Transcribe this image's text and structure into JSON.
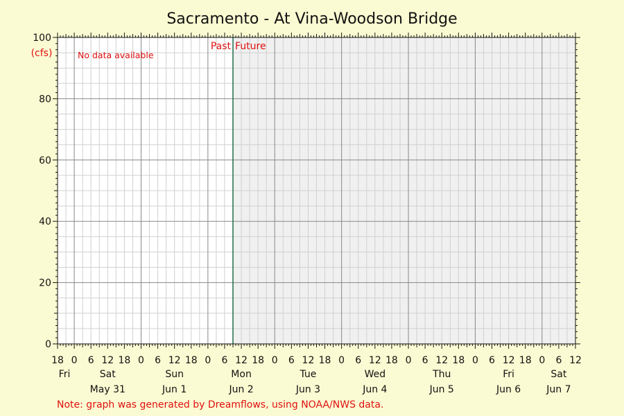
{
  "chart_data": {
    "type": "line",
    "title": "Sacramento - At Vina-Woodson Bridge",
    "ylabel": "(cfs)",
    "ylim": [
      0,
      100
    ],
    "y_ticks": [
      0,
      20,
      40,
      60,
      80,
      100
    ],
    "xlim": [
      "2025-05-30T18:00",
      "2025-06-07T12:00"
    ],
    "x_hour_labels": [
      "18",
      "0",
      "6",
      "12",
      "18",
      "0",
      "6",
      "12",
      "18",
      "0",
      "6",
      "12",
      "18",
      "0",
      "6",
      "12",
      "18",
      "0",
      "6",
      "12",
      "18",
      "0",
      "6",
      "12",
      "18",
      "0",
      "6",
      "12",
      "18",
      "0",
      "6",
      "12"
    ],
    "day_names": [
      {
        "text": "Fri",
        "t": "2025-05-30T18:00"
      },
      {
        "text": "Sat",
        "t": "2025-05-31T12:00"
      },
      {
        "text": "Sun",
        "t": "2025-06-01T12:00"
      },
      {
        "text": "Mon",
        "t": "2025-06-02T12:00"
      },
      {
        "text": "Tue",
        "t": "2025-06-03T12:00"
      },
      {
        "text": "Wed",
        "t": "2025-06-04T12:00"
      },
      {
        "text": "Thu",
        "t": "2025-06-05T12:00"
      },
      {
        "text": "Fri",
        "t": "2025-06-06T12:00"
      },
      {
        "text": "Sat",
        "t": "2025-06-07T06:00"
      }
    ],
    "day_dates": [
      {
        "text": "May 31",
        "t": "2025-05-31T12:00"
      },
      {
        "text": "Jun 1",
        "t": "2025-06-01T12:00"
      },
      {
        "text": "Jun 2",
        "t": "2025-06-02T12:00"
      },
      {
        "text": "Jun 3",
        "t": "2025-06-03T12:00"
      },
      {
        "text": "Jun 4",
        "t": "2025-06-04T12:00"
      },
      {
        "text": "Jun 5",
        "t": "2025-06-05T12:00"
      },
      {
        "text": "Jun 6",
        "t": "2025-06-06T12:00"
      },
      {
        "text": "Jun 7",
        "t": "2025-06-07T06:00"
      }
    ],
    "now": "2025-06-02T09:00",
    "past_label": "Past",
    "future_label": "Future",
    "no_data_label": "No data available",
    "series": [],
    "grid": true
  },
  "note": "Note: graph was generated by Dreamflows, using NOAA/NWS data.",
  "colors": {
    "page_background": "#fbfbd3",
    "past_background": "#ffffff",
    "future_background": "#f0f0f0",
    "major_grid": "#888888",
    "minor_grid": "#d0d0d0",
    "now_line": "#1f6e4a",
    "annotation": "#e01010",
    "text": "#111111"
  }
}
